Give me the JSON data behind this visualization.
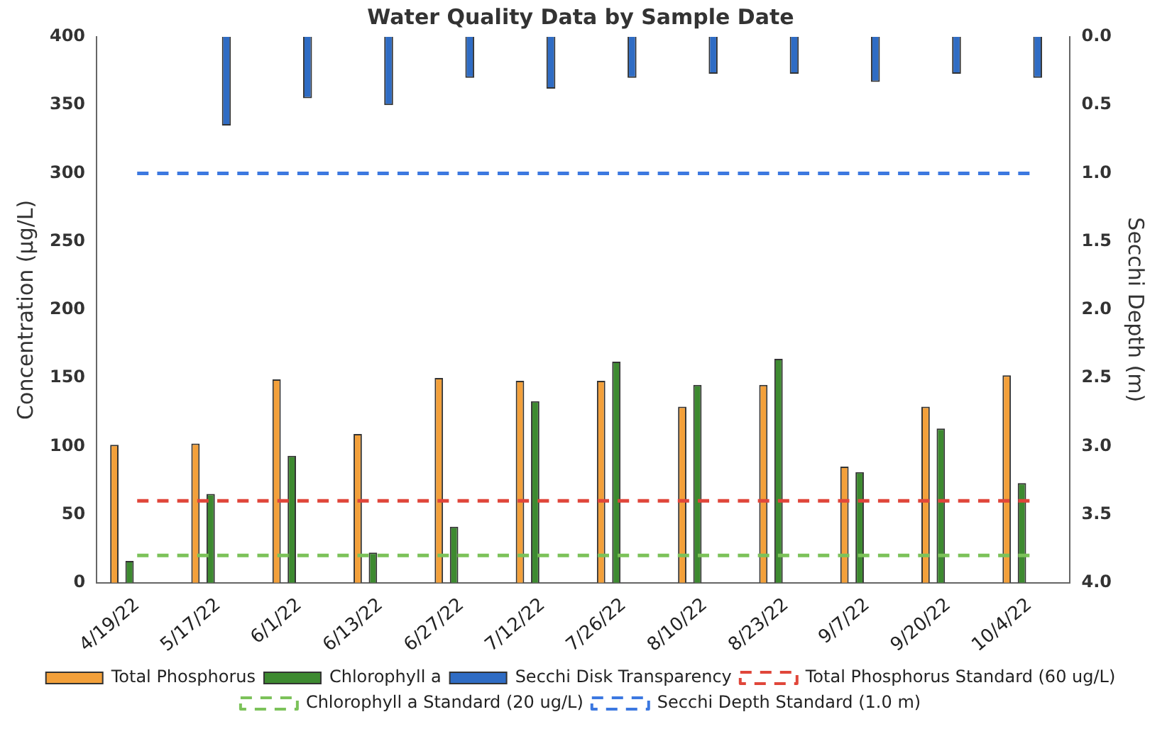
{
  "chart_data": {
    "type": "bar",
    "title": "Water Quality Data by Sample Date",
    "ylabel": "Concentration (µg/L)",
    "y2label": "Secchi Depth (m)",
    "categories": [
      "4/19/22",
      "5/17/22",
      "6/1/22",
      "6/13/22",
      "6/27/22",
      "7/12/22",
      "7/26/22",
      "8/10/22",
      "8/23/22",
      "9/7/22",
      "9/20/22",
      "10/4/22"
    ],
    "series": [
      {
        "name": "Total Phosphorus",
        "color": "#f3a03a",
        "values": [
          101,
          102,
          149,
          109,
          150,
          148,
          148,
          129,
          145,
          85,
          129,
          152
        ]
      },
      {
        "name": "Chlorophyll a",
        "color": "#3d8a30",
        "values": [
          16,
          65,
          93,
          22,
          41,
          133,
          162,
          145,
          164,
          81,
          113,
          73
        ]
      },
      {
        "name": "Secchi Disk Transparency",
        "color": "#2f6cc4",
        "axis": "y2",
        "values": [
          null,
          0.65,
          0.45,
          0.5,
          0.3,
          0.38,
          0.3,
          0.27,
          0.27,
          0.33,
          0.27,
          0.3
        ]
      },
      {
        "name": "Total Phosphorus Standard (60 ug/L)",
        "type": "line",
        "line_style": "dashed",
        "color": "#e0463a",
        "values": [
          60,
          60,
          60,
          60,
          60,
          60,
          60,
          60,
          60,
          60,
          60,
          60
        ]
      },
      {
        "name": "Chlorophyll a Standard (20 ug/L)",
        "type": "line",
        "line_style": "dashed",
        "color": "#7cc25a",
        "values": [
          20,
          20,
          20,
          20,
          20,
          20,
          20,
          20,
          20,
          20,
          20,
          20
        ]
      },
      {
        "name": "Secchi Depth Standard (1.0 m)",
        "type": "line",
        "line_style": "dashed",
        "axis": "y2",
        "color": "#3c78e0",
        "values": [
          1,
          1,
          1,
          1,
          1,
          1,
          1,
          1,
          1,
          1,
          1,
          1
        ]
      }
    ],
    "ylim": [
      0,
      400
    ],
    "yticks": [
      0,
      50,
      100,
      150,
      200,
      250,
      300,
      350,
      400
    ],
    "y2lim": [
      4,
      0
    ],
    "y2ticks": [
      {
        "value": 0,
        "label": "0.0"
      },
      {
        "value": 0.5,
        "label": "0.5"
      },
      {
        "value": 1,
        "label": "1.0"
      },
      {
        "value": 1.5,
        "label": "1.5"
      },
      {
        "value": 2,
        "label": "2.0"
      },
      {
        "value": 2.5,
        "label": "2.5"
      },
      {
        "value": 3,
        "label": "3.0"
      },
      {
        "value": 3.5,
        "label": "3.5"
      },
      {
        "value": 4,
        "label": "4.0"
      }
    ],
    "grid": false,
    "legend": "bottom",
    "marker": "none"
  }
}
